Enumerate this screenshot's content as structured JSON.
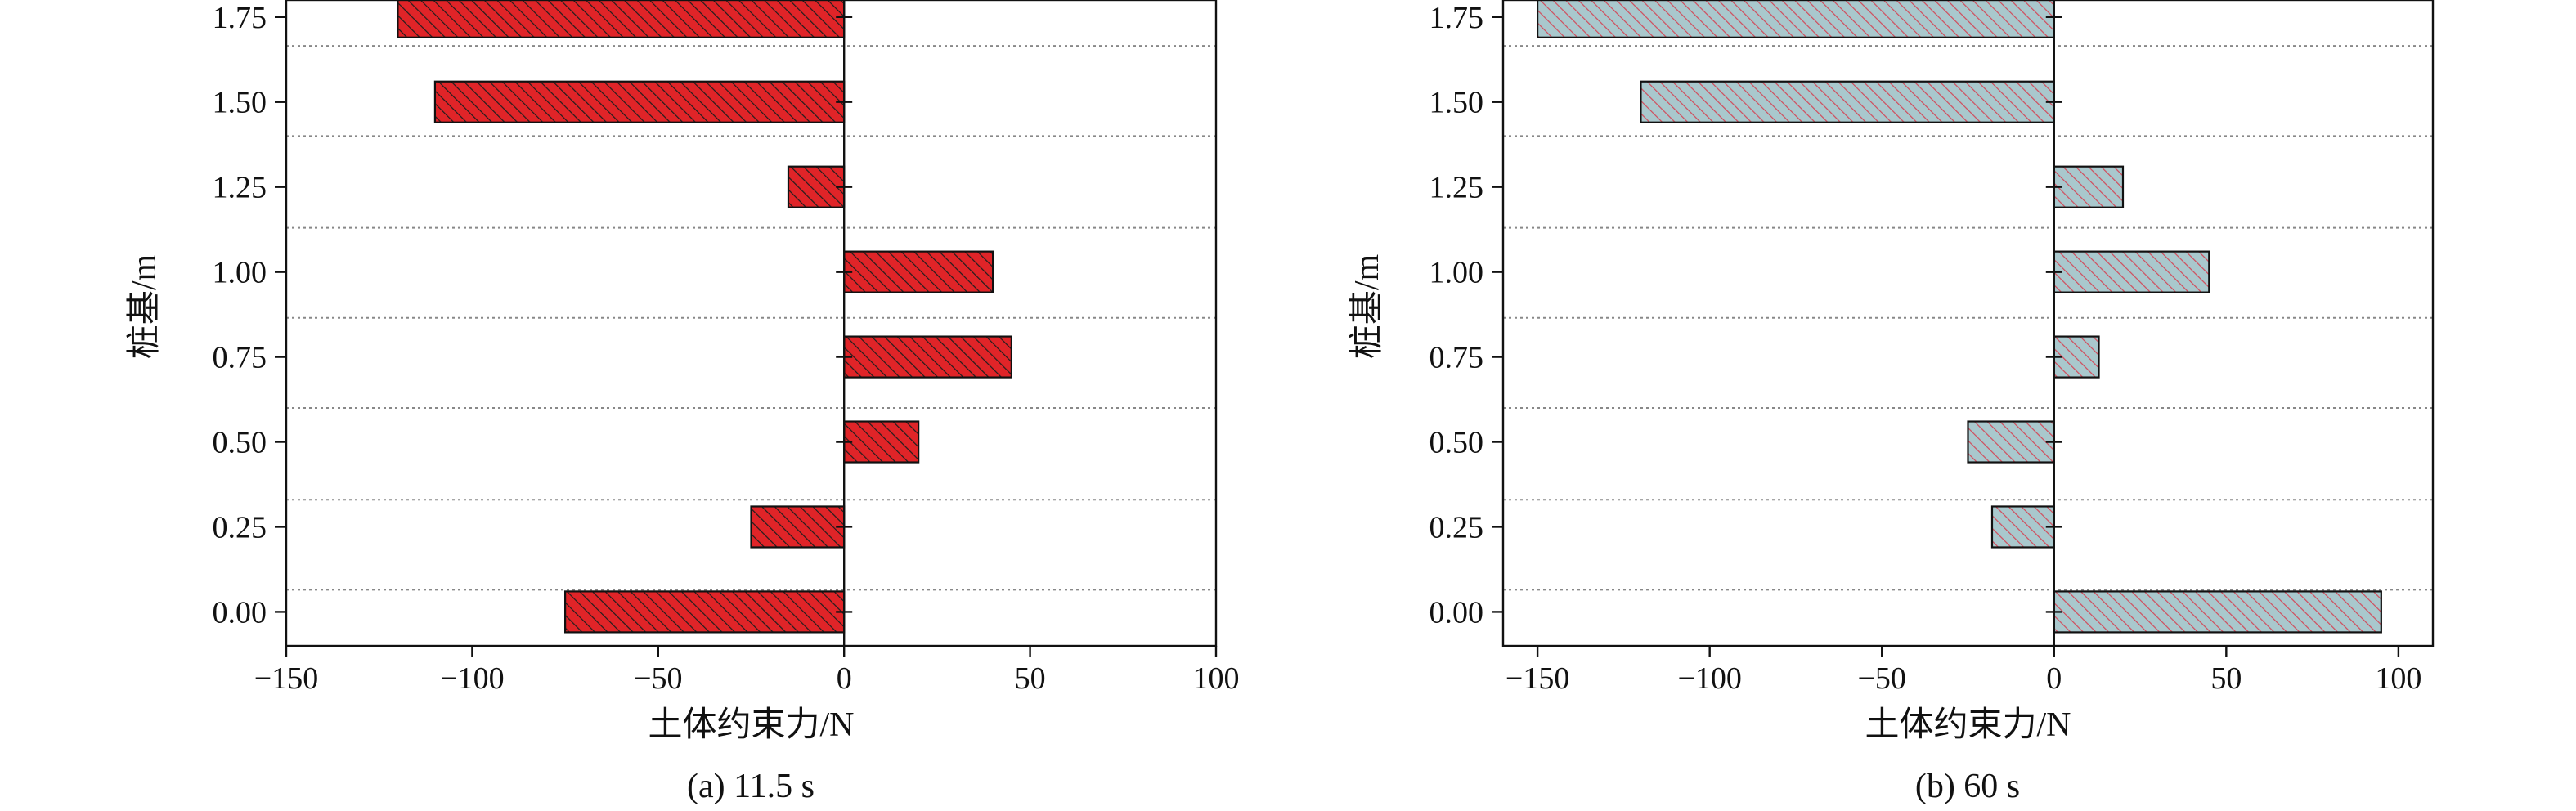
{
  "chart_data": [
    {
      "type": "bar",
      "orientation": "horizontal",
      "caption": "(a) 11.5 s",
      "xlabel": "土体约束力/N",
      "ylabel": "桩基/m",
      "xlim": [
        -150,
        100
      ],
      "ylim": [
        -0.1,
        1.8
      ],
      "xticks": [
        -150,
        -100,
        -50,
        0,
        50,
        100
      ],
      "xtick_labels": [
        "−150",
        "−100",
        "−50",
        "0",
        "50",
        "100"
      ],
      "yticks": [
        0.0,
        0.25,
        0.5,
        0.75,
        1.0,
        1.25,
        1.5,
        1.75
      ],
      "ytick_labels": [
        "0.00",
        "0.25",
        "0.50",
        "0.75",
        "1.00",
        "1.25",
        "1.50",
        "1.75"
      ],
      "y": [
        0.0,
        0.25,
        0.5,
        0.75,
        1.0,
        1.25,
        1.5,
        1.75
      ],
      "values": [
        -75,
        -25,
        20,
        45,
        40,
        -15,
        -110,
        -120
      ],
      "separator_y": [
        0.065,
        0.33,
        0.6,
        0.865,
        1.13,
        1.4,
        1.665
      ],
      "grid": "dotted horizontal separators",
      "bar_color": "#e02428",
      "hatch_color": "#1e1e1e",
      "hatch": "diagonal"
    },
    {
      "type": "bar",
      "orientation": "horizontal",
      "caption": "(b) 60 s",
      "xlabel": "土体约束力/N",
      "ylabel": "桩基/m",
      "xlim": [
        -160,
        110
      ],
      "ylim": [
        -0.1,
        1.8
      ],
      "xticks": [
        -150,
        -100,
        -50,
        0,
        50,
        100
      ],
      "xtick_labels": [
        "−150",
        "−100",
        "−50",
        "0",
        "50",
        "100"
      ],
      "yticks": [
        0.0,
        0.25,
        0.5,
        0.75,
        1.0,
        1.25,
        1.5,
        1.75
      ],
      "ytick_labels": [
        "0.00",
        "0.25",
        "0.50",
        "0.75",
        "1.00",
        "1.25",
        "1.50",
        "1.75"
      ],
      "y": [
        0.0,
        0.25,
        0.5,
        0.75,
        1.0,
        1.25,
        1.5,
        1.75
      ],
      "values": [
        95,
        -18,
        -25,
        13,
        45,
        20,
        -120,
        -150
      ],
      "separator_y": [
        0.065,
        0.33,
        0.6,
        0.865,
        1.13,
        1.4,
        1.665
      ],
      "grid": "dotted horizontal separators",
      "bar_color": "#a9c8cd",
      "hatch_color": "#d24a5a",
      "hatch": "diagonal"
    }
  ]
}
